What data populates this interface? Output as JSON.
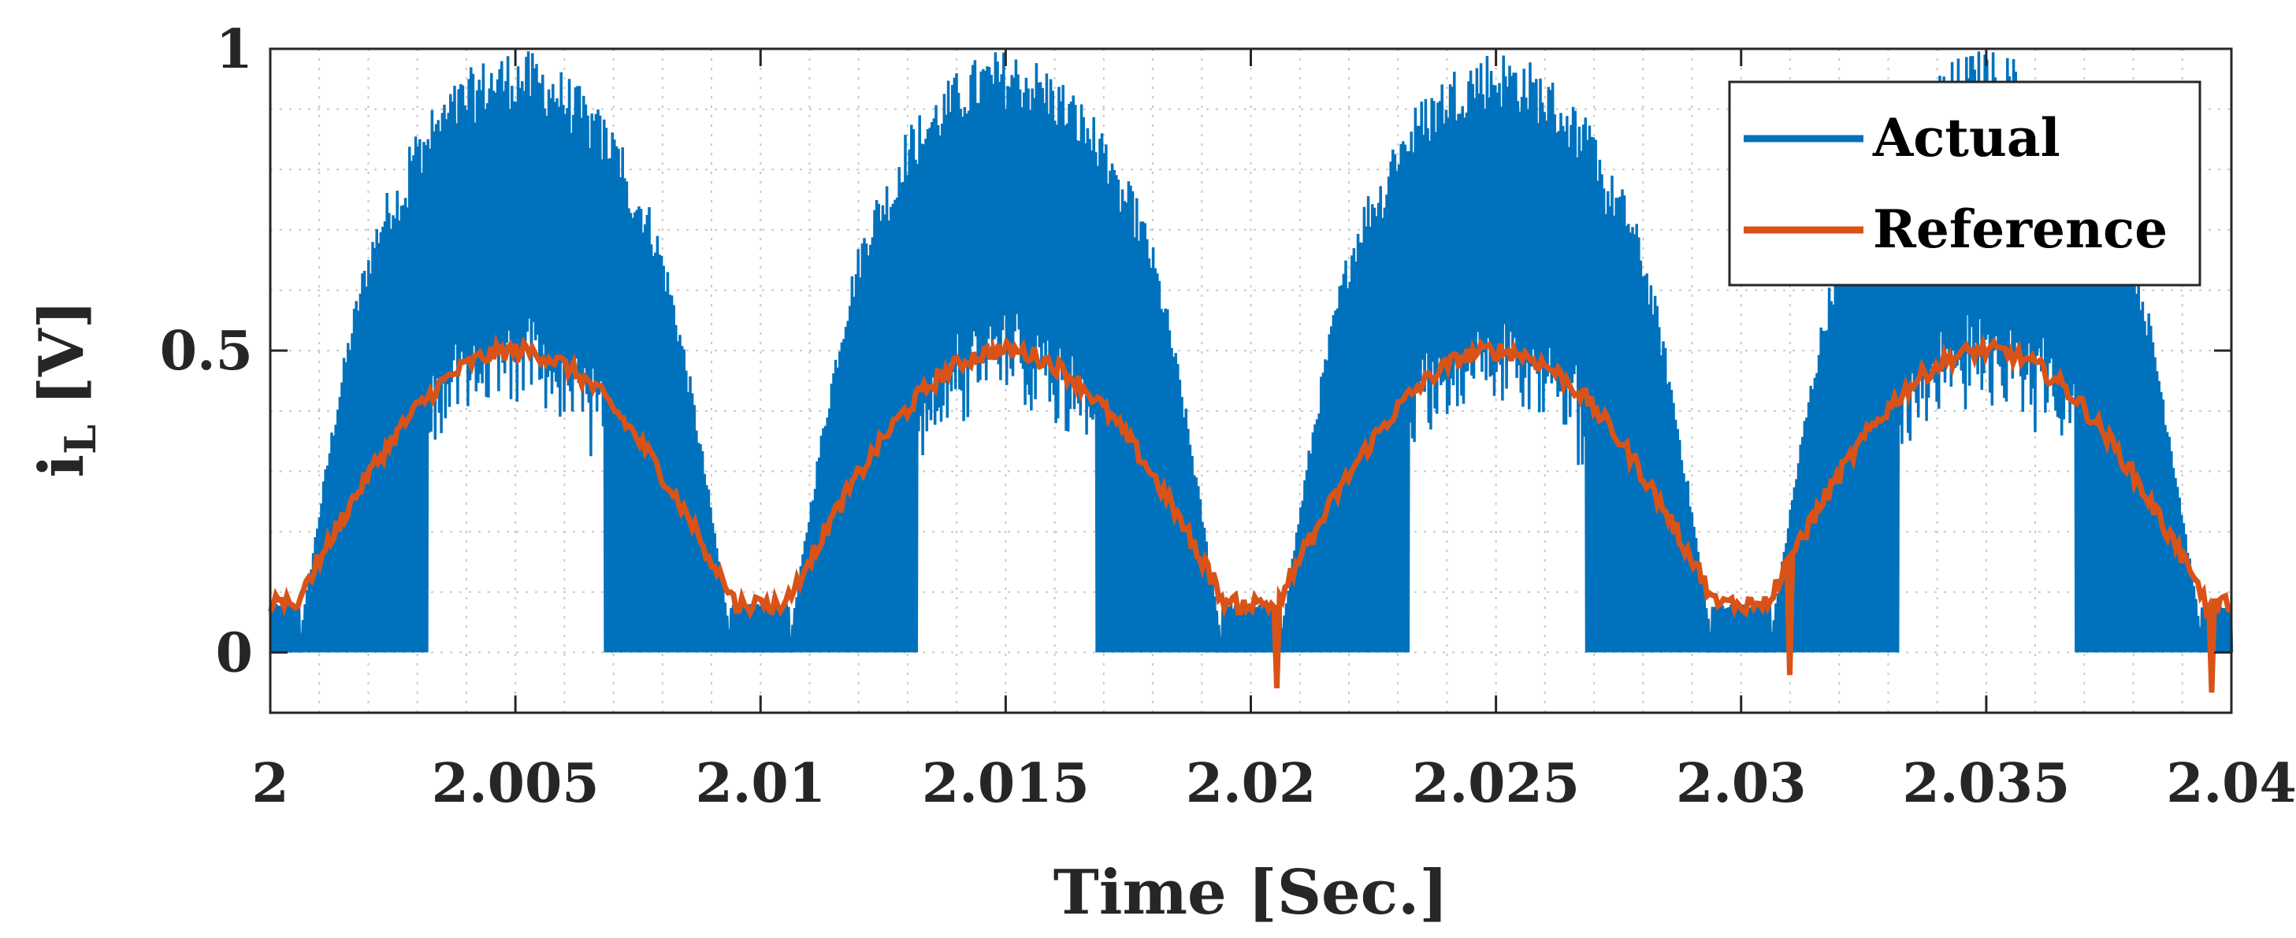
{
  "chart_data": {
    "type": "line",
    "xlabel": "Time [Sec.]",
    "ylabel_main": "i",
    "ylabel_sub": "L",
    "ylabel_unit": "[V]",
    "xlim": [
      2.0,
      2.04
    ],
    "ylim": [
      -0.1,
      1.0
    ],
    "xticks": [
      2.0,
      2.005,
      2.01,
      2.015,
      2.02,
      2.025,
      2.03,
      2.035,
      2.04
    ],
    "xtick_labels": [
      "2",
      "2.005",
      "2.01",
      "2.015",
      "2.02",
      "2.025",
      "2.03",
      "2.035",
      "2.04"
    ],
    "yticks": [
      0,
      0.5,
      1
    ],
    "ytick_labels": [
      "0",
      "0.5",
      "1"
    ],
    "grid": "minor-dotted",
    "legend_position": "top-right",
    "period": 0.01,
    "series": [
      {
        "name": "Actual",
        "color": "#0072BD",
        "style": "switching-ripple",
        "envelope_peak": 1.0,
        "envelope_low": 0.0,
        "peak_times": [
          2.005,
          2.015,
          2.025,
          2.035
        ]
      },
      {
        "name": "Reference",
        "color": "#D95319",
        "style": "rectified-sine",
        "amplitude": 0.5,
        "floor": 0.1,
        "peak_times": [
          2.005,
          2.015,
          2.025,
          2.035
        ]
      }
    ]
  }
}
